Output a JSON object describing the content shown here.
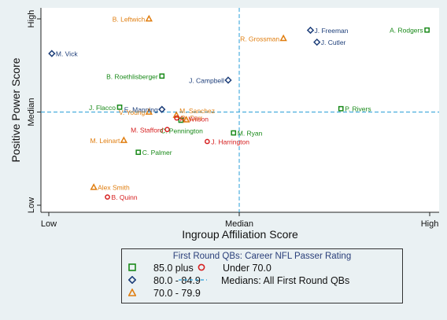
{
  "chart_data": {
    "type": "scatter",
    "xlabel": "Ingroup Affiliation Score",
    "ylabel": "Positive Power Score",
    "xlim": [
      0,
      100
    ],
    "ylim": [
      0,
      100
    ],
    "x_ticks": [
      {
        "v": 0,
        "label": "Low"
      },
      {
        "v": 50,
        "label": "Median"
      },
      {
        "v": 100,
        "label": "High"
      }
    ],
    "y_ticks": [
      {
        "v": 0,
        "label": "Low"
      },
      {
        "v": 50,
        "label": "Median"
      },
      {
        "v": 100,
        "label": "High"
      }
    ],
    "median_x": 50,
    "median_y": 50,
    "grid": false,
    "series": [
      {
        "name": "85.0 plus",
        "marker": "square",
        "color": "#1a8a1a",
        "points": [
          {
            "label": "A. Rodgers",
            "x": 99.3,
            "y": 94.0
          },
          {
            "label": "P. Rivers",
            "x": 76.7,
            "y": 51.8
          },
          {
            "label": "B. Roethlisberger",
            "x": 29.7,
            "y": 69.3
          },
          {
            "label": "J. Flacco",
            "x": 18.6,
            "y": 52.6
          },
          {
            "label": "C. Pennington",
            "x": 34.7,
            "y": 45.6
          },
          {
            "label": "M. Ryan",
            "x": 48.5,
            "y": 38.8
          },
          {
            "label": "C. Palmer",
            "x": 23.5,
            "y": 28.4
          }
        ]
      },
      {
        "name": "80.0 - 84.9",
        "marker": "diamond",
        "color": "#1e3f7a",
        "points": [
          {
            "label": "J. Freeman",
            "x": 68.7,
            "y": 93.9
          },
          {
            "label": "J. Cutler",
            "x": 70.4,
            "y": 87.5
          },
          {
            "label": "M. Vick",
            "x": 0.8,
            "y": 81.4
          },
          {
            "label": "J. Campbell",
            "x": 47.1,
            "y": 67.1
          },
          {
            "label": "E. Manning",
            "x": 29.7,
            "y": 51.4
          }
        ]
      },
      {
        "name": "70.0 - 79.9",
        "marker": "triangle",
        "color": "#e07e10",
        "points": [
          {
            "label": "B. Leftwich",
            "x": 26.3,
            "y": 100.0
          },
          {
            "label": "R. Grossman",
            "x": 61.6,
            "y": 89.5
          },
          {
            "label": "M. Sanchez",
            "x": 33.5,
            "y": 48.3
          },
          {
            "label": "D. Carr",
            "x": 36.1,
            "y": 45.8
          },
          {
            "label": "V. Young",
            "x": 26.3,
            "y": 50.0
          },
          {
            "label": "M. Leinart",
            "x": 19.7,
            "y": 34.8
          },
          {
            "label": "Alex Smith",
            "x": 11.8,
            "y": 9.6
          }
        ]
      },
      {
        "name": "Under 70.0",
        "marker": "circle",
        "color": "#d62020",
        "points": [
          {
            "label": "R. Wilson",
            "x": 33.6,
            "y": 46.8
          },
          {
            "label": "M. Stafford",
            "x": 31.1,
            "y": 40.6
          },
          {
            "label": "J. Harrington",
            "x": 41.6,
            "y": 34.2
          },
          {
            "label": "B. Quinn",
            "x": 15.4,
            "y": 4.4
          }
        ]
      }
    ],
    "legend": {
      "title": "First Round QBs: Career NFL Passer Rating",
      "median_label": "Medians: All First Round QBs",
      "placement": "bottom"
    }
  }
}
